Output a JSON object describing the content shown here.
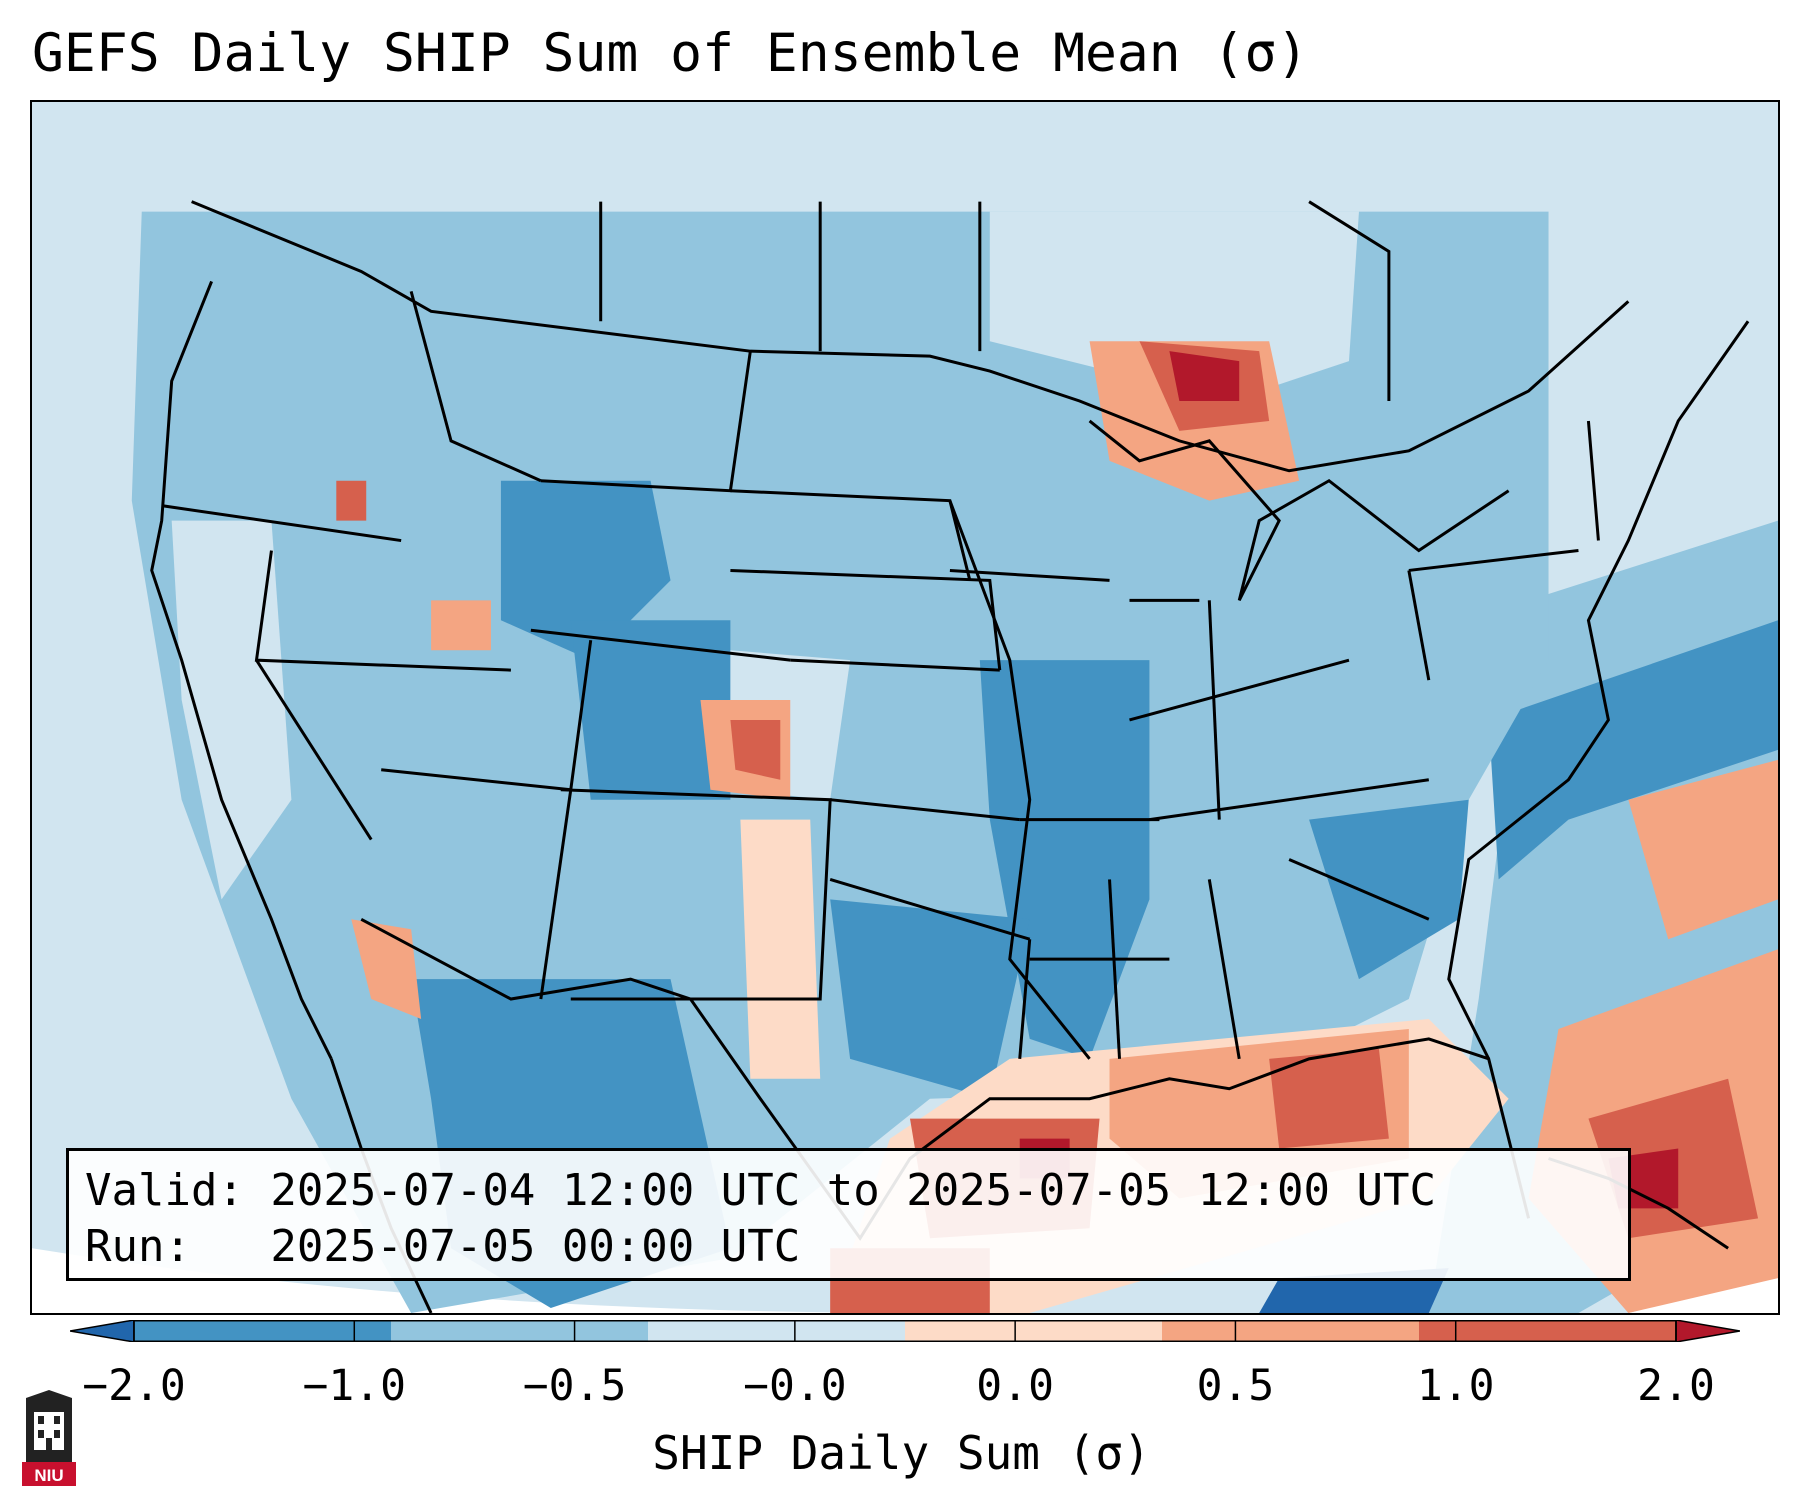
{
  "title": "GEFS Daily SHIP Sum of Ensemble Mean (σ)",
  "info": {
    "valid_line": "Valid: 2025-07-04 12:00 UTC to 2025-07-05 12:00 UTC",
    "run_line": "Run:   2025-07-05 00:00 UTC"
  },
  "colorbar": {
    "label": "SHIP Daily Sum (σ)",
    "ticks": [
      "−2.0",
      "−1.0",
      "−0.5",
      "−0.0",
      "0.0",
      "0.5",
      "1.0",
      "2.0"
    ],
    "colors": [
      "#2166ac",
      "#4393c3",
      "#92c5de",
      "#d1e5f0",
      "#fddbc7",
      "#f4a582",
      "#d6604d",
      "#b2182b"
    ],
    "extend": "both"
  },
  "logo": {
    "text": "NIU",
    "icon": "building-icon"
  }
}
